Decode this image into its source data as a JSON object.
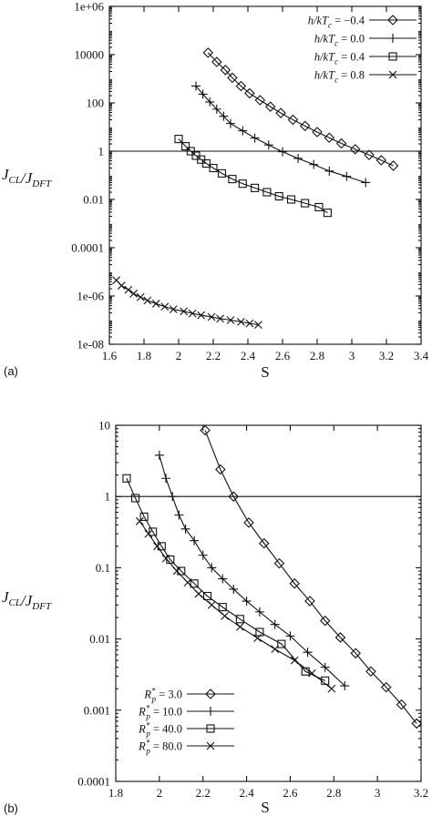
{
  "chart_data": [
    {
      "type": "scatter",
      "panel_label": "(a)",
      "xlabel": "S",
      "ylabel": "J_CL/J_DFT",
      "xlim": [
        1.6,
        3.4
      ],
      "ylim": [
        1e-08,
        1000000.0
      ],
      "yscale": "log",
      "xticks": [
        "1.6",
        "1.8",
        "2",
        "2.2",
        "2.4",
        "2.6",
        "2.8",
        "3",
        "3.2",
        "3.4"
      ],
      "yticks": [
        {
          "v": 1e-08,
          "label": "1e-08"
        },
        {
          "v": 1e-06,
          "label": "1e-06"
        },
        {
          "v": 0.0001,
          "label": "0.0001"
        },
        {
          "v": 0.01,
          "label": "0.01"
        },
        {
          "v": 1,
          "label": "1"
        },
        {
          "v": 100,
          "label": "100"
        },
        {
          "v": 10000,
          "label": "10000"
        },
        {
          "v": 1000000.0,
          "label": "1e+06"
        }
      ],
      "reference_line_y": 1,
      "legend_position": "top-right",
      "series": [
        {
          "name": "h/kT_c = −0.4",
          "marker": "diamond",
          "x": [
            2.17,
            2.22,
            2.27,
            2.31,
            2.36,
            2.41,
            2.47,
            2.53,
            2.59,
            2.66,
            2.73,
            2.8,
            2.87,
            2.94,
            3.02,
            3.1,
            3.17,
            3.24
          ],
          "y": [
            12000,
            5000,
            2300,
            1100,
            500,
            250,
            130,
            70,
            38,
            20,
            11,
            6.2,
            3.6,
            2.1,
            1.2,
            0.7,
            0.42,
            0.25
          ]
        },
        {
          "name": "h/kT_c = 0.0",
          "marker": "plus",
          "x": [
            2.1,
            2.14,
            2.18,
            2.22,
            2.26,
            2.3,
            2.37,
            2.44,
            2.52,
            2.6,
            2.69,
            2.78,
            2.87,
            2.97,
            3.08
          ],
          "y": [
            500,
            230,
            110,
            55,
            28,
            14,
            7,
            3.5,
            1.8,
            0.95,
            0.5,
            0.28,
            0.15,
            0.09,
            0.05
          ]
        },
        {
          "name": "h/kT_c = 0.4",
          "marker": "square",
          "x": [
            2.0,
            2.04,
            2.07,
            2.1,
            2.13,
            2.16,
            2.2,
            2.25,
            2.31,
            2.37,
            2.44,
            2.51,
            2.58,
            2.65,
            2.73,
            2.81,
            2.86
          ],
          "y": [
            3.2,
            1.6,
            1.0,
            0.65,
            0.45,
            0.31,
            0.2,
            0.12,
            0.07,
            0.045,
            0.03,
            0.02,
            0.0135,
            0.01,
            0.007,
            0.0048,
            0.0028
          ]
        },
        {
          "name": "h/kT_c = 0.8",
          "marker": "cross",
          "x": [
            1.64,
            1.67,
            1.71,
            1.74,
            1.78,
            1.82,
            1.87,
            1.92,
            1.97,
            2.03,
            2.08,
            2.13,
            2.19,
            2.24,
            2.3,
            2.36,
            2.41,
            2.46
          ],
          "y": [
            4.5e-06,
            2.7e-06,
            1.8e-06,
            1.25e-06,
            9e-07,
            6.5e-07,
            4.8e-07,
            3.6e-07,
            2.8e-07,
            2.3e-07,
            1.9e-07,
            1.6e-07,
            1.35e-07,
            1.15e-07,
            1e-07,
            8.5e-08,
            7.3e-08,
            6.4e-08
          ]
        }
      ]
    },
    {
      "type": "scatter",
      "panel_label": "(b)",
      "xlabel": "S",
      "ylabel": "J_CL/J_DFT",
      "xlim": [
        1.8,
        3.2
      ],
      "ylim": [
        0.0001,
        10
      ],
      "yscale": "log",
      "xticks": [
        "1.8",
        "2",
        "2.2",
        "2.4",
        "2.6",
        "2.8",
        "3",
        "3.2"
      ],
      "yticks": [
        {
          "v": 0.0001,
          "label": "0.0001"
        },
        {
          "v": 0.001,
          "label": "0.001"
        },
        {
          "v": 0.01,
          "label": "0.01"
        },
        {
          "v": 0.1,
          "label": "0.1"
        },
        {
          "v": 1,
          "label": "1"
        },
        {
          "v": 10,
          "label": "10"
        }
      ],
      "reference_line_y": 1,
      "legend_position": "bottom-left",
      "series": [
        {
          "name": "R_p* = 3.0",
          "marker": "diamond",
          "x": [
            2.21,
            2.28,
            2.34,
            2.41,
            2.48,
            2.55,
            2.62,
            2.69,
            2.76,
            2.83,
            2.9,
            2.97,
            3.04,
            3.11,
            3.18
          ],
          "y": [
            8.5,
            2.4,
            1.0,
            0.43,
            0.22,
            0.115,
            0.06,
            0.034,
            0.018,
            0.0105,
            0.0063,
            0.0035,
            0.0021,
            0.0012,
            0.00065
          ]
        },
        {
          "name": "R_p* = 10.0",
          "marker": "plus",
          "x": [
            2.0,
            2.03,
            2.06,
            2.09,
            2.12,
            2.16,
            2.2,
            2.24,
            2.29,
            2.34,
            2.4,
            2.46,
            2.53,
            2.6,
            2.68,
            2.76,
            2.85
          ],
          "y": [
            3.8,
            1.8,
            1.0,
            0.55,
            0.35,
            0.24,
            0.15,
            0.1,
            0.07,
            0.05,
            0.034,
            0.024,
            0.016,
            0.011,
            0.0065,
            0.004,
            0.0022
          ]
        },
        {
          "name": "R_p* = 40.0",
          "marker": "square",
          "x": [
            1.85,
            1.89,
            1.93,
            1.97,
            2.01,
            2.05,
            2.1,
            2.16,
            2.22,
            2.29,
            2.37,
            2.46,
            2.56,
            2.67,
            2.76
          ],
          "y": [
            1.8,
            0.95,
            0.52,
            0.32,
            0.2,
            0.13,
            0.09,
            0.06,
            0.04,
            0.028,
            0.019,
            0.0125,
            0.0085,
            0.0035,
            0.0026
          ]
        },
        {
          "name": "R_p* = 80.0",
          "marker": "cross",
          "x": [
            1.91,
            1.95,
            1.99,
            2.03,
            2.08,
            2.13,
            2.18,
            2.24,
            2.3,
            2.37,
            2.45,
            2.53,
            2.62,
            2.7,
            2.79
          ],
          "y": [
            0.45,
            0.3,
            0.2,
            0.135,
            0.09,
            0.062,
            0.043,
            0.03,
            0.021,
            0.0148,
            0.0103,
            0.0072,
            0.005,
            0.0033,
            0.002
          ]
        }
      ]
    }
  ]
}
